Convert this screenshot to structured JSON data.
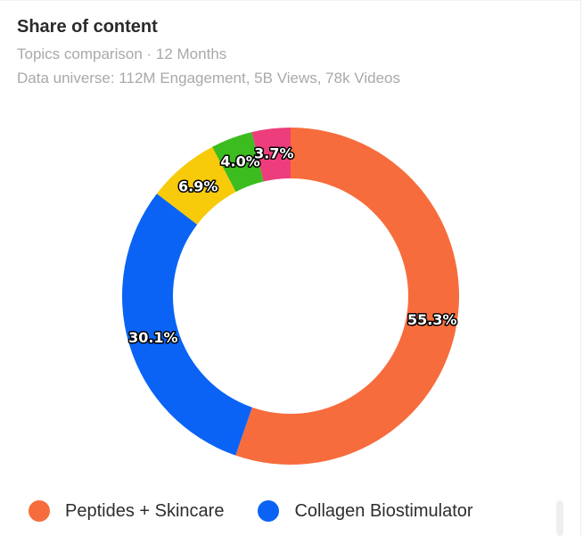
{
  "card": {
    "title": "Share of content",
    "subtitle": "Topics comparison · 12 Months",
    "universe": "Data universe: 112M Engagement, 5B Views, 78k Videos"
  },
  "chart_data": {
    "type": "pie",
    "variant": "donut",
    "slices": [
      {
        "name": "Peptides + Skincare",
        "value": 55.3,
        "label": "55.3%",
        "color": "#F76C3C"
      },
      {
        "name": "Collagen Biostimulator",
        "value": 30.1,
        "label": "30.1%",
        "color": "#0A63F5"
      },
      {
        "name": "",
        "value": 6.9,
        "label": "6.9%",
        "color": "#F7CA0A"
      },
      {
        "name": "",
        "value": 4.0,
        "label": "4.0%",
        "color": "#3CBC1E"
      },
      {
        "name": "",
        "value": 3.7,
        "label": "3.7%",
        "color": "#EE3D7C"
      }
    ],
    "legend_placement": "bottom"
  },
  "legend": {
    "items": [
      {
        "label": "Peptides + Skincare",
        "color": "#F76C3C"
      },
      {
        "label": "Collagen Biostimulator",
        "color": "#0A63F5"
      }
    ]
  }
}
